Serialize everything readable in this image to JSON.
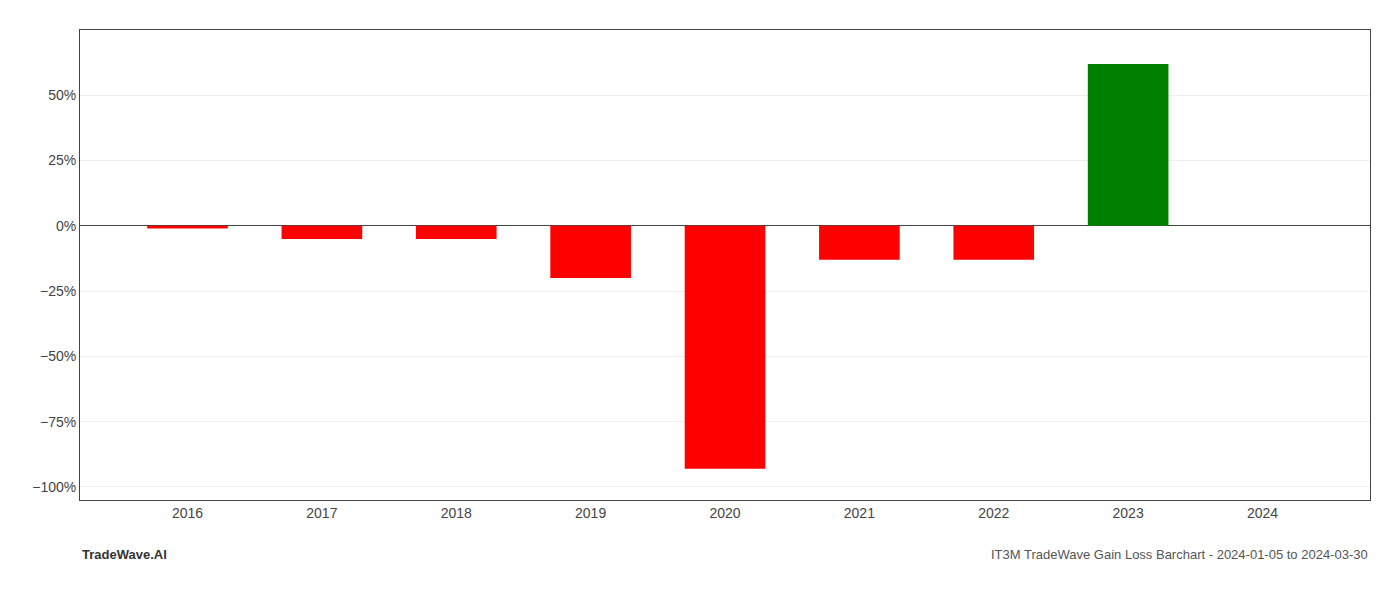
{
  "chart_data": {
    "type": "bar",
    "x": [
      2016,
      2017,
      2018,
      2019,
      2020,
      2021,
      2022,
      2023,
      2024
    ],
    "values": [
      -0.01,
      -0.05,
      -0.05,
      -0.2,
      -0.93,
      -0.13,
      -0.13,
      0.62,
      null
    ],
    "colors": [
      "red",
      "red",
      "red",
      "red",
      "red",
      "red",
      "red",
      "green",
      null
    ],
    "xlim": [
      2015.2,
      2024.8
    ],
    "xticks": [
      2016,
      2017,
      2018,
      2019,
      2020,
      2021,
      2022,
      2023,
      2024
    ],
    "ylim": [
      -1.05,
      0.75
    ],
    "yticks": [
      {
        "value": -1.0,
        "label": "−100%"
      },
      {
        "value": -0.75,
        "label": "−75%"
      },
      {
        "value": -0.5,
        "label": "−50%"
      },
      {
        "value": -0.25,
        "label": "−25%"
      },
      {
        "value": 0.0,
        "label": "0%"
      },
      {
        "value": 0.25,
        "label": "25%"
      },
      {
        "value": 0.5,
        "label": "50%"
      }
    ],
    "grid": true,
    "annotations": [
      "TradeWave.AI",
      "IT3M TradeWave Gain Loss Barchart - 2024-01-05 to 2024-03-30"
    ]
  }
}
